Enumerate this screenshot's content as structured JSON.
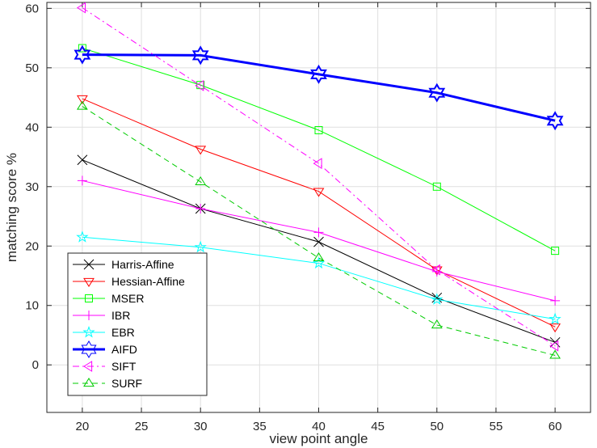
{
  "chart_data": {
    "type": "line",
    "title": "",
    "xlabel": "view point angle",
    "ylabel": "matching score %",
    "xlim": [
      17,
      63
    ],
    "ylim": [
      -8,
      61
    ],
    "xticks": [
      20,
      25,
      30,
      35,
      40,
      45,
      50,
      55,
      60
    ],
    "yticks": [
      0,
      10,
      20,
      30,
      40,
      50,
      60
    ],
    "grid": true,
    "legend_position": "bottom-left",
    "x": [
      20,
      30,
      40,
      50,
      60
    ],
    "series": [
      {
        "name": "Harris-Affine",
        "color": "#000000",
        "marker": "x",
        "dash": "solid",
        "width": 1,
        "values": [
          34.5,
          26.3,
          20.7,
          11.3,
          3.8
        ]
      },
      {
        "name": "Hessian-Affine",
        "color": "#ff0000",
        "marker": "triangle-down",
        "dash": "solid",
        "width": 1,
        "values": [
          44.8,
          36.3,
          29.2,
          16.0,
          6.4
        ]
      },
      {
        "name": "MSER",
        "color": "#00ff00",
        "marker": "square",
        "dash": "solid",
        "width": 1,
        "values": [
          53.3,
          47.1,
          39.5,
          30.0,
          19.2
        ]
      },
      {
        "name": "IBR",
        "color": "#ff00ff",
        "marker": "plus",
        "dash": "solid",
        "width": 1,
        "values": [
          31.0,
          26.3,
          22.3,
          15.7,
          10.8
        ]
      },
      {
        "name": "EBR",
        "color": "#00ffff",
        "marker": "star",
        "dash": "solid",
        "width": 1,
        "values": [
          21.5,
          19.8,
          17.1,
          11.0,
          7.7
        ]
      },
      {
        "name": "AIFD",
        "color": "#0000ff",
        "marker": "hexagram",
        "dash": "solid",
        "width": 3,
        "values": [
          52.2,
          52.1,
          48.9,
          45.8,
          41.1
        ]
      },
      {
        "name": "SIFT",
        "color": "#ff00ff",
        "marker": "triangle-left",
        "dash": "dashdot",
        "width": 1,
        "values": [
          60.1,
          47.0,
          33.9,
          16.0,
          3.2
        ]
      },
      {
        "name": "SURF",
        "color": "#00cc00",
        "marker": "triangle-up",
        "dash": "dash",
        "width": 1,
        "values": [
          43.5,
          30.8,
          18.0,
          6.7,
          1.6
        ]
      }
    ]
  }
}
